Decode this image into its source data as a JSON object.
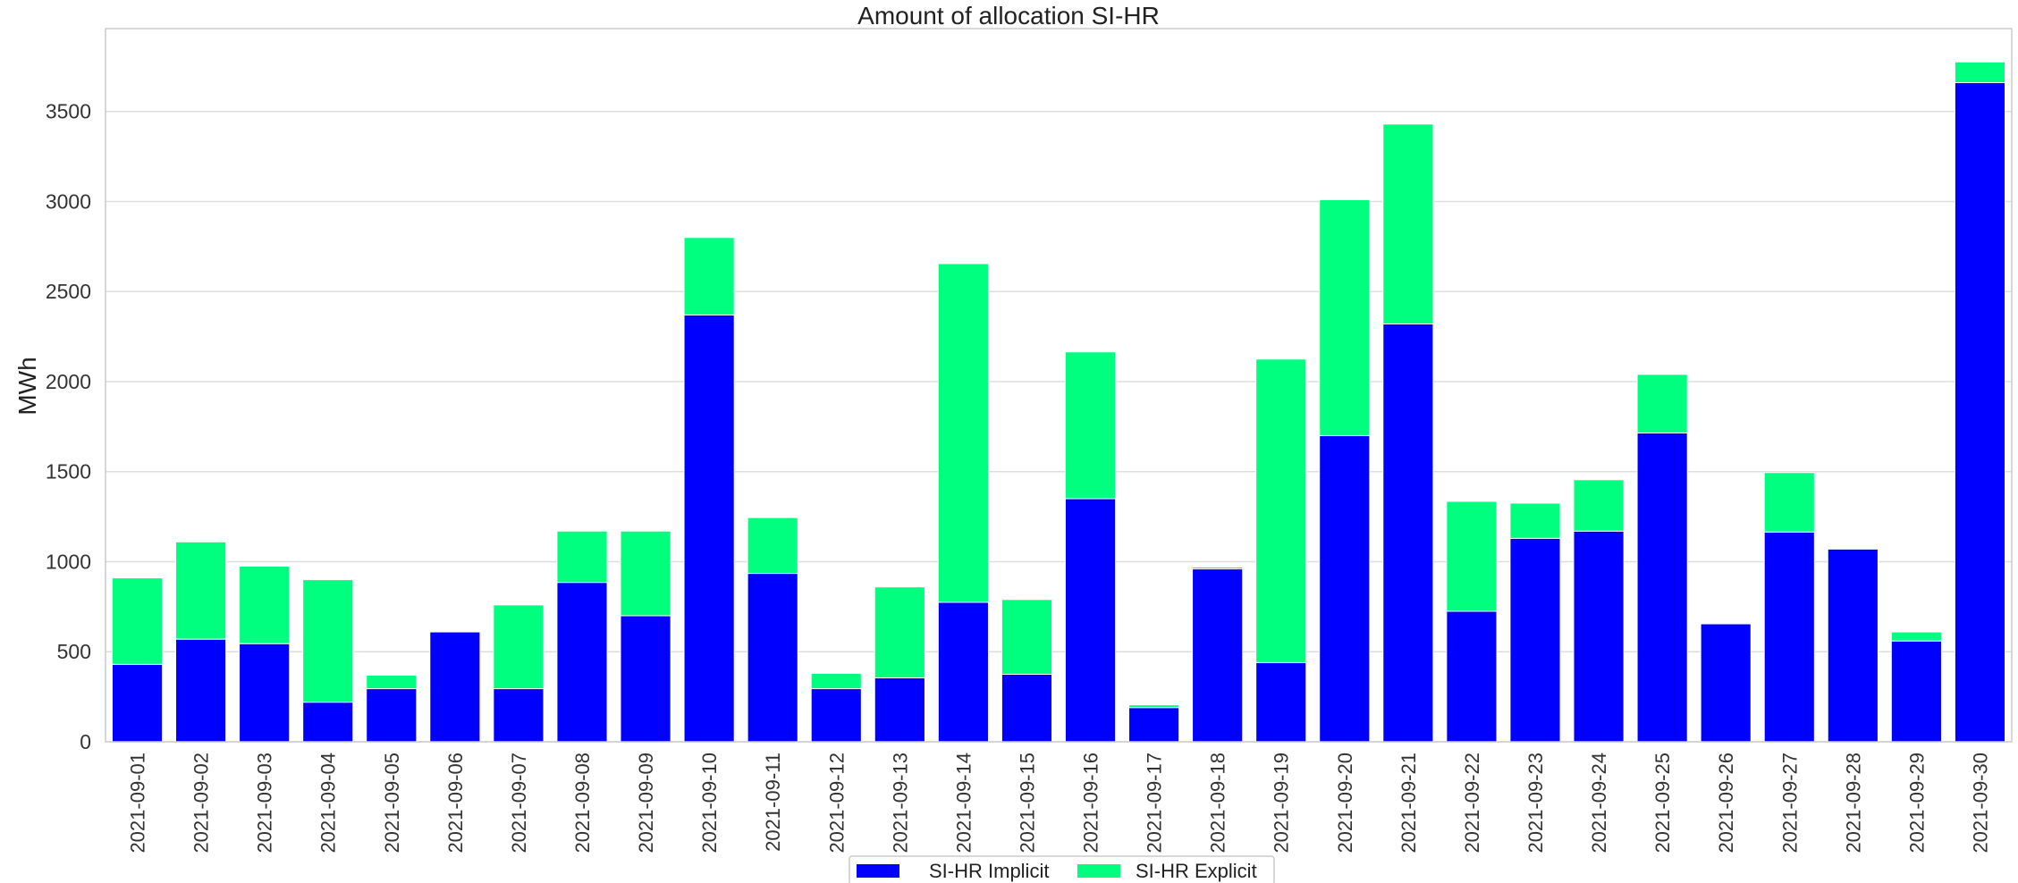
{
  "chart_data": {
    "type": "bar",
    "stacked": true,
    "title": "Amount of allocation SI-HR",
    "xlabel": "",
    "ylabel": "MWh",
    "ylim": [
      0,
      3960
    ],
    "yticks": [
      0,
      500,
      1000,
      1500,
      2000,
      2500,
      3000,
      3500
    ],
    "grid": true,
    "legend_position": "bottom-center",
    "categories": [
      "2021-09-01",
      "2021-09-02",
      "2021-09-03",
      "2021-09-04",
      "2021-09-05",
      "2021-09-06",
      "2021-09-07",
      "2021-09-08",
      "2021-09-09",
      "2021-09-10",
      "2021-09-11",
      "2021-09-12",
      "2021-09-13",
      "2021-09-14",
      "2021-09-15",
      "2021-09-16",
      "2021-09-17",
      "2021-09-18",
      "2021-09-19",
      "2021-09-20",
      "2021-09-21",
      "2021-09-22",
      "2021-09-23",
      "2021-09-24",
      "2021-09-25",
      "2021-09-26",
      "2021-09-27",
      "2021-09-28",
      "2021-09-29",
      "2021-09-30"
    ],
    "series": [
      {
        "name": "SI-HR Implicit",
        "color": "#0000ff",
        "values": [
          430,
          570,
          545,
          220,
          295,
          610,
          295,
          885,
          700,
          2370,
          935,
          295,
          355,
          775,
          375,
          1350,
          190,
          960,
          440,
          1700,
          2320,
          725,
          1130,
          1170,
          1715,
          655,
          1165,
          1070,
          560,
          3660
        ]
      },
      {
        "name": "SI-HR Explicit",
        "color": "#00ff7f",
        "values": [
          480,
          540,
          430,
          680,
          75,
          0,
          465,
          285,
          470,
          430,
          310,
          85,
          505,
          1880,
          415,
          815,
          15,
          10,
          1685,
          1310,
          1110,
          610,
          195,
          285,
          325,
          0,
          330,
          0,
          50,
          115
        ]
      }
    ]
  }
}
